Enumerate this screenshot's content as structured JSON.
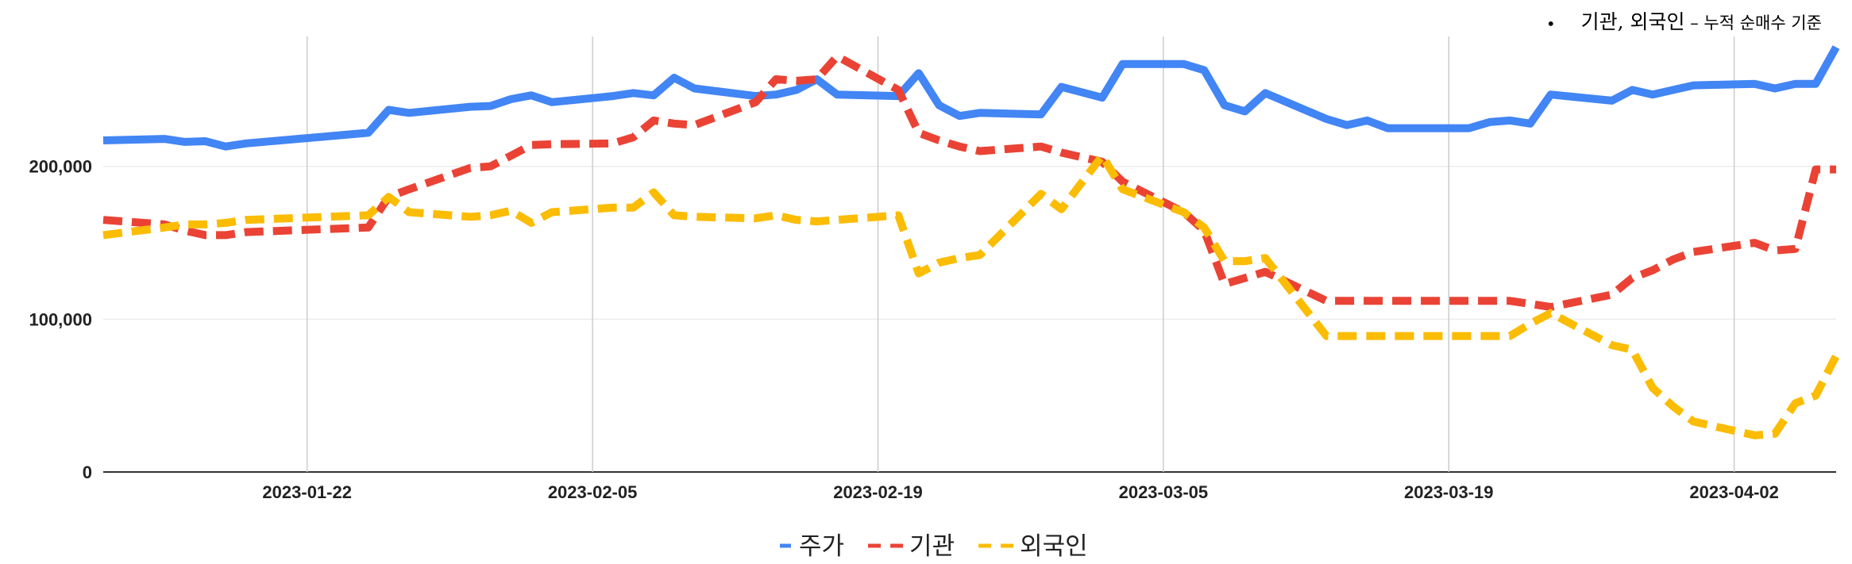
{
  "note": {
    "bullet": "•",
    "main": "기관, 외국인",
    "sep": " – ",
    "sub": "누적 순매수 기준"
  },
  "chart_data": {
    "type": "line",
    "x_dates": [
      "2023-01-12",
      "2023-01-15",
      "2023-01-16",
      "2023-01-17",
      "2023-01-18",
      "2023-01-19",
      "2023-01-25",
      "2023-01-26",
      "2023-01-27",
      "2023-01-30",
      "2023-01-31",
      "2023-02-01",
      "2023-02-02",
      "2023-02-03",
      "2023-02-06",
      "2023-02-07",
      "2023-02-08",
      "2023-02-09",
      "2023-02-10",
      "2023-02-13",
      "2023-02-14",
      "2023-02-15",
      "2023-02-16",
      "2023-02-17",
      "2023-02-20",
      "2023-02-21",
      "2023-02-22",
      "2023-02-23",
      "2023-02-24",
      "2023-02-27",
      "2023-02-28",
      "2023-03-02",
      "2023-03-03",
      "2023-03-06",
      "2023-03-07",
      "2023-03-08",
      "2023-03-09",
      "2023-03-10",
      "2023-03-13",
      "2023-03-14",
      "2023-03-15",
      "2023-03-16",
      "2023-03-17",
      "2023-03-20",
      "2023-03-21",
      "2023-03-22",
      "2023-03-23",
      "2023-03-24",
      "2023-03-27",
      "2023-03-28",
      "2023-03-29",
      "2023-03-30",
      "2023-03-31",
      "2023-04-03",
      "2023-04-04",
      "2023-04-05",
      "2023-04-06",
      "2023-04-07"
    ],
    "series": [
      {
        "name": "주가",
        "color": "#4285F4",
        "dash": "solid",
        "values": [
          217000,
          218000,
          216000,
          216500,
          213000,
          215000,
          222000,
          237000,
          235000,
          239000,
          239500,
          244000,
          246500,
          242000,
          246000,
          248000,
          246500,
          258000,
          251000,
          246000,
          247000,
          250000,
          257000,
          247000,
          246000,
          261000,
          240000,
          233000,
          235000,
          234000,
          252000,
          245000,
          267000,
          267000,
          263000,
          240000,
          236000,
          248000,
          231000,
          227000,
          230000,
          225000,
          225000,
          225000,
          229000,
          230000,
          228000,
          247000,
          243000,
          250000,
          247000,
          250000,
          253000,
          254000,
          251000,
          254000,
          254000,
          278000
        ]
      },
      {
        "name": "기관",
        "color": "#EA4335",
        "dash": "dashed",
        "values": [
          165000,
          162000,
          158000,
          155000,
          155000,
          157000,
          160000,
          180000,
          185000,
          199000,
          200000,
          207000,
          214000,
          214500,
          215000,
          219000,
          230000,
          228000,
          227000,
          242000,
          257000,
          256000,
          257000,
          272000,
          250000,
          222000,
          217000,
          213000,
          210000,
          213000,
          209000,
          203000,
          190000,
          170000,
          158000,
          123000,
          127000,
          131000,
          112000,
          112000,
          112000,
          112000,
          112000,
          112000,
          112000,
          112000,
          110000,
          108000,
          116000,
          127000,
          132000,
          139000,
          144000,
          150000,
          145000,
          146000,
          198000,
          198000
        ]
      },
      {
        "name": "외국인",
        "color": "#FBBC04",
        "dash": "dashed",
        "values": [
          155000,
          160000,
          162000,
          162000,
          163000,
          165000,
          168000,
          180000,
          170000,
          167000,
          168000,
          171000,
          163000,
          170000,
          173000,
          173000,
          183000,
          168000,
          167000,
          166000,
          168000,
          165000,
          164000,
          165000,
          168000,
          130000,
          137000,
          140000,
          142000,
          182000,
          172000,
          207000,
          185000,
          170000,
          160000,
          138000,
          138000,
          140000,
          89000,
          89000,
          89000,
          89000,
          89000,
          89000,
          89000,
          89000,
          97000,
          104000,
          83000,
          80000,
          55000,
          43000,
          33000,
          24000,
          25000,
          45000,
          50000,
          76000
        ]
      }
    ],
    "x_ticks": [
      "2023-01-22",
      "2023-02-05",
      "2023-02-19",
      "2023-03-05",
      "2023-03-19",
      "2023-04-02"
    ],
    "y_ticks": [
      "0",
      "100,000",
      "200,000"
    ],
    "ylim": [
      0,
      285000
    ],
    "grid": true,
    "legend": "bottom-center"
  }
}
